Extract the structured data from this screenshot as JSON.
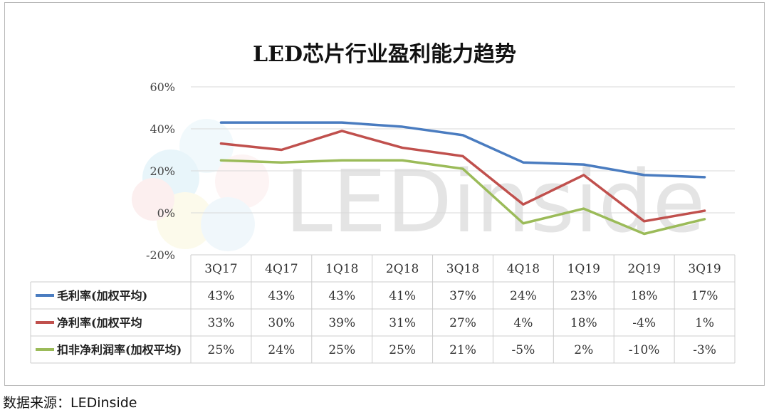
{
  "chart_data": {
    "type": "line",
    "title": "LED芯片行业盈利能力趋势",
    "categories": [
      "3Q17",
      "4Q17",
      "1Q18",
      "2Q18",
      "3Q18",
      "4Q18",
      "1Q19",
      "2Q19",
      "3Q19"
    ],
    "y_ticks": [
      "60%",
      "40%",
      "20%",
      "0%",
      "-20%"
    ],
    "ylim": [
      -20,
      60
    ],
    "grid": true,
    "legend": "table-left",
    "series": [
      {
        "name": "毛利率(加权平均)",
        "color": "#4a7cc0",
        "values": [
          43,
          43,
          43,
          41,
          37,
          24,
          23,
          18,
          17
        ],
        "labels": [
          "43%",
          "43%",
          "43%",
          "41%",
          "37%",
          "24%",
          "23%",
          "18%",
          "17%"
        ]
      },
      {
        "name": "净利率(加权平均",
        "color": "#c0504d",
        "values": [
          33,
          30,
          39,
          31,
          27,
          4,
          18,
          -4,
          1
        ],
        "labels": [
          "33%",
          "30%",
          "39%",
          "31%",
          "27%",
          "4%",
          "18%",
          "-4%",
          "1%"
        ]
      },
      {
        "name": "扣非净利润率(加权平均)",
        "color": "#9bbb59",
        "values": [
          25,
          24,
          25,
          25,
          21,
          -5,
          2,
          -10,
          -3
        ],
        "labels": [
          "25%",
          "24%",
          "25%",
          "25%",
          "21%",
          "-5%",
          "2%",
          "-10%",
          "-3%"
        ]
      }
    ]
  },
  "watermark": "LEDinside",
  "source": "数据来源：LEDinside"
}
